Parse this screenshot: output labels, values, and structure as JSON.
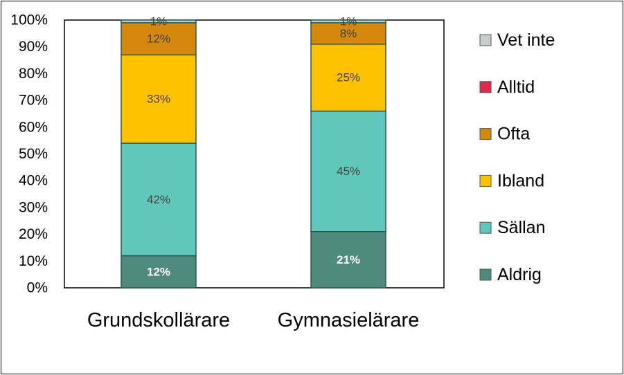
{
  "chart_data": {
    "type": "bar",
    "stacked": true,
    "categories": [
      "Grundskollärare",
      "Gymnasielärare"
    ],
    "ylim": [
      0,
      100
    ],
    "yticks": [
      "0%",
      "10%",
      "20%",
      "30%",
      "40%",
      "50%",
      "60%",
      "70%",
      "80%",
      "90%",
      "100%"
    ],
    "grid": false,
    "legend_position": "right",
    "legend_order": [
      "Vet inte",
      "Alltid",
      "Ofta",
      "Ibland",
      "Sällan",
      "Aldrig"
    ],
    "series": [
      {
        "name": "Aldrig",
        "color": "#4f8a7e",
        "label_color": "#ffffff",
        "label_bold": true,
        "values": [
          12,
          21
        ],
        "labels": [
          "12%",
          "21%"
        ]
      },
      {
        "name": "Sällan",
        "color": "#5fc7bb",
        "label_color": "#404040",
        "label_bold": false,
        "values": [
          42,
          45
        ],
        "labels": [
          "42%",
          "45%"
        ]
      },
      {
        "name": "Ibland",
        "color": "#fcc200",
        "label_color": "#404040",
        "label_bold": false,
        "values": [
          33,
          25
        ],
        "labels": [
          "33%",
          "25%"
        ]
      },
      {
        "name": "Ofta",
        "color": "#d4880e",
        "label_color": "#404040",
        "label_bold": false,
        "values": [
          12,
          8
        ],
        "labels": [
          "12%",
          "8%"
        ]
      },
      {
        "name": "Alltid",
        "color": "#e0284f",
        "label_color": "#404040",
        "label_bold": false,
        "values": [
          0,
          0
        ],
        "labels": [
          "",
          ""
        ]
      },
      {
        "name": "Vet inte",
        "color": "#c8ccca",
        "label_color": "#404040",
        "label_bold": false,
        "values": [
          1,
          1
        ],
        "labels": [
          "1%",
          "1%"
        ]
      }
    ]
  }
}
